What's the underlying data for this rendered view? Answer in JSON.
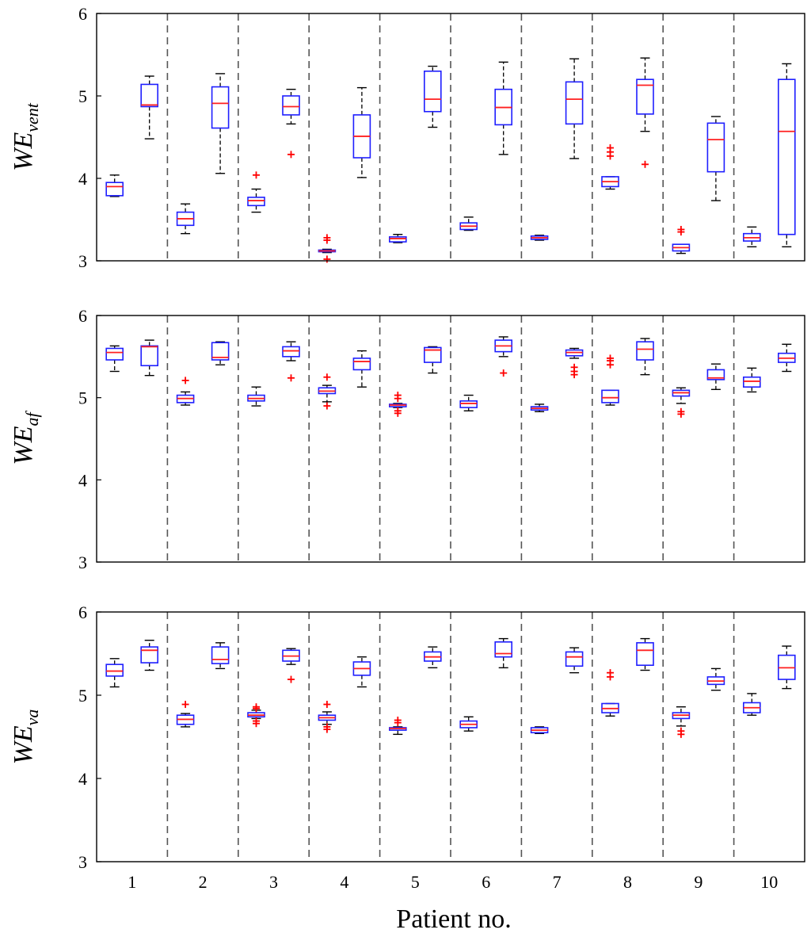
{
  "chart_data": {
    "type": "boxplot",
    "xlabel": "Patient no.",
    "categories": [
      "1",
      "2",
      "3",
      "4",
      "5",
      "6",
      "7",
      "8",
      "9",
      "10"
    ],
    "colors": {
      "box": "#1f1fff",
      "median": "#ff2020",
      "whisker": "#000000",
      "outlier": "#ff0000",
      "divider": "#555555"
    },
    "panels": [
      {
        "ylabel_main": "WE",
        "ylabel_sub": "vent",
        "ylim": [
          3,
          6
        ],
        "yticks": [
          "3",
          "4",
          "5",
          "6"
        ],
        "boxes": [
          [
            {
              "wlo": 3.78,
              "q1": 3.79,
              "med": 3.9,
              "q3": 3.95,
              "whi": 4.04,
              "out": []
            },
            {
              "wlo": 4.48,
              "q1": 4.87,
              "med": 4.89,
              "q3": 5.14,
              "whi": 5.24,
              "out": []
            }
          ],
          [
            {
              "wlo": 3.33,
              "q1": 3.43,
              "med": 3.51,
              "q3": 3.59,
              "whi": 3.69,
              "out": []
            },
            {
              "wlo": 4.06,
              "q1": 4.61,
              "med": 4.91,
              "q3": 5.11,
              "whi": 5.27,
              "out": []
            }
          ],
          [
            {
              "wlo": 3.59,
              "q1": 3.67,
              "med": 3.73,
              "q3": 3.77,
              "whi": 3.87,
              "out": [
                4.04
              ]
            },
            {
              "wlo": 4.66,
              "q1": 4.77,
              "med": 4.87,
              "q3": 5.0,
              "whi": 5.08,
              "out": [
                4.29
              ]
            }
          ],
          [
            {
              "wlo": 3.1,
              "q1": 3.11,
              "med": 3.12,
              "q3": 3.13,
              "whi": 3.14,
              "out": [
                3.02,
                3.25,
                3.28
              ]
            },
            {
              "wlo": 4.01,
              "q1": 4.25,
              "med": 4.51,
              "q3": 4.77,
              "whi": 5.1,
              "out": []
            }
          ],
          [
            {
              "wlo": 3.22,
              "q1": 3.23,
              "med": 3.27,
              "q3": 3.29,
              "whi": 3.32,
              "out": []
            },
            {
              "wlo": 4.62,
              "q1": 4.81,
              "med": 4.96,
              "q3": 5.3,
              "whi": 5.36,
              "out": []
            }
          ],
          [
            {
              "wlo": 3.37,
              "q1": 3.38,
              "med": 3.42,
              "q3": 3.46,
              "whi": 3.53,
              "out": []
            },
            {
              "wlo": 4.29,
              "q1": 4.65,
              "med": 4.86,
              "q3": 5.08,
              "whi": 5.41,
              "out": []
            }
          ],
          [
            {
              "wlo": 3.25,
              "q1": 3.26,
              "med": 3.28,
              "q3": 3.3,
              "whi": 3.31,
              "out": []
            },
            {
              "wlo": 4.24,
              "q1": 4.66,
              "med": 4.96,
              "q3": 5.17,
              "whi": 5.45,
              "out": []
            }
          ],
          [
            {
              "wlo": 3.87,
              "q1": 3.9,
              "med": 3.96,
              "q3": 4.02,
              "whi": 4.02,
              "out": [
                4.27,
                4.32,
                4.37
              ]
            },
            {
              "wlo": 4.57,
              "q1": 4.78,
              "med": 5.13,
              "q3": 5.2,
              "whi": 5.46,
              "out": [
                4.17
              ]
            }
          ],
          [
            {
              "wlo": 3.09,
              "q1": 3.12,
              "med": 3.16,
              "q3": 3.2,
              "whi": 3.2,
              "out": [
                3.35,
                3.38
              ]
            },
            {
              "wlo": 3.73,
              "q1": 4.08,
              "med": 4.47,
              "q3": 4.67,
              "whi": 4.75,
              "out": []
            }
          ],
          [
            {
              "wlo": 3.17,
              "q1": 3.24,
              "med": 3.28,
              "q3": 3.33,
              "whi": 3.41,
              "out": []
            },
            {
              "wlo": 3.17,
              "q1": 3.32,
              "med": 4.57,
              "q3": 5.2,
              "whi": 5.39,
              "out": []
            }
          ]
        ]
      },
      {
        "ylabel_main": "WE",
        "ylabel_sub": "af",
        "ylim": [
          3,
          6
        ],
        "yticks": [
          "3",
          "4",
          "5",
          "6"
        ],
        "boxes": [
          [
            {
              "wlo": 5.32,
              "q1": 5.46,
              "med": 5.55,
              "q3": 5.6,
              "whi": 5.63,
              "out": []
            },
            {
              "wlo": 5.27,
              "q1": 5.39,
              "med": 5.62,
              "q3": 5.63,
              "whi": 5.7,
              "out": []
            }
          ],
          [
            {
              "wlo": 4.91,
              "q1": 4.94,
              "med": 4.99,
              "q3": 5.03,
              "whi": 5.07,
              "out": [
                5.21
              ]
            },
            {
              "wlo": 5.4,
              "q1": 5.46,
              "med": 5.49,
              "q3": 5.67,
              "whi": 5.68,
              "out": []
            }
          ],
          [
            {
              "wlo": 4.9,
              "q1": 4.96,
              "med": 4.99,
              "q3": 5.03,
              "whi": 5.13,
              "out": []
            },
            {
              "wlo": 5.45,
              "q1": 5.5,
              "med": 5.57,
              "q3": 5.62,
              "whi": 5.68,
              "out": [
                5.24
              ]
            }
          ],
          [
            {
              "wlo": 4.95,
              "q1": 5.05,
              "med": 5.08,
              "q3": 5.12,
              "whi": 5.15,
              "out": [
                4.9,
                5.25
              ]
            },
            {
              "wlo": 5.13,
              "q1": 5.34,
              "med": 5.44,
              "q3": 5.48,
              "whi": 5.57,
              "out": []
            }
          ],
          [
            {
              "wlo": 4.88,
              "q1": 4.89,
              "med": 4.91,
              "q3": 4.92,
              "whi": 4.93,
              "out": [
                4.81,
                4.84,
                4.99,
                5.03
              ]
            },
            {
              "wlo": 5.3,
              "q1": 5.43,
              "med": 5.58,
              "q3": 5.61,
              "whi": 5.62,
              "out": []
            }
          ],
          [
            {
              "wlo": 4.84,
              "q1": 4.88,
              "med": 4.93,
              "q3": 4.96,
              "whi": 5.03,
              "out": []
            },
            {
              "wlo": 5.5,
              "q1": 5.56,
              "med": 5.63,
              "q3": 5.7,
              "whi": 5.74,
              "out": [
                5.3
              ]
            }
          ],
          [
            {
              "wlo": 4.83,
              "q1": 4.85,
              "med": 4.87,
              "q3": 4.89,
              "whi": 4.92,
              "out": []
            },
            {
              "wlo": 5.48,
              "q1": 5.51,
              "med": 5.55,
              "q3": 5.58,
              "whi": 5.6,
              "out": [
                5.28,
                5.32,
                5.37
              ]
            }
          ],
          [
            {
              "wlo": 4.91,
              "q1": 4.94,
              "med": 5.0,
              "q3": 5.09,
              "whi": 5.09,
              "out": [
                5.4,
                5.45,
                5.48
              ]
            },
            {
              "wlo": 5.28,
              "q1": 5.46,
              "med": 5.59,
              "q3": 5.68,
              "whi": 5.72,
              "out": []
            }
          ],
          [
            {
              "wlo": 4.93,
              "q1": 5.02,
              "med": 5.06,
              "q3": 5.09,
              "whi": 5.12,
              "out": [
                4.8,
                4.83
              ]
            },
            {
              "wlo": 5.1,
              "q1": 5.22,
              "med": 5.24,
              "q3": 5.34,
              "whi": 5.41,
              "out": []
            }
          ],
          [
            {
              "wlo": 5.07,
              "q1": 5.13,
              "med": 5.2,
              "q3": 5.25,
              "whi": 5.36,
              "out": []
            },
            {
              "wlo": 5.32,
              "q1": 5.43,
              "med": 5.48,
              "q3": 5.54,
              "whi": 5.65,
              "out": []
            }
          ]
        ]
      },
      {
        "ylabel_main": "WE",
        "ylabel_sub": "va",
        "ylim": [
          3,
          6
        ],
        "yticks": [
          "3",
          "4",
          "5",
          "6"
        ],
        "boxes": [
          [
            {
              "wlo": 5.1,
              "q1": 5.23,
              "med": 5.29,
              "q3": 5.37,
              "whi": 5.44,
              "out": []
            },
            {
              "wlo": 5.3,
              "q1": 5.39,
              "med": 5.54,
              "q3": 5.58,
              "whi": 5.66,
              "out": []
            }
          ],
          [
            {
              "wlo": 4.62,
              "q1": 4.65,
              "med": 4.71,
              "q3": 4.76,
              "whi": 4.78,
              "out": [
                4.89
              ]
            },
            {
              "wlo": 5.32,
              "q1": 5.38,
              "med": 5.43,
              "q3": 5.58,
              "whi": 5.63,
              "out": []
            }
          ],
          [
            {
              "wlo": 4.72,
              "q1": 4.74,
              "med": 4.76,
              "q3": 4.79,
              "whi": 4.82,
              "out": [
                4.66,
                4.69,
                4.84,
                4.86
              ]
            },
            {
              "wlo": 5.37,
              "q1": 5.41,
              "med": 5.47,
              "q3": 5.54,
              "whi": 5.56,
              "out": [
                5.19
              ]
            }
          ],
          [
            {
              "wlo": 4.65,
              "q1": 4.7,
              "med": 4.73,
              "q3": 4.76,
              "whi": 4.8,
              "out": [
                4.59,
                4.62,
                4.89
              ]
            },
            {
              "wlo": 5.1,
              "q1": 5.24,
              "med": 5.32,
              "q3": 5.4,
              "whi": 5.46,
              "out": []
            }
          ],
          [
            {
              "wlo": 4.53,
              "q1": 4.58,
              "med": 4.6,
              "q3": 4.61,
              "whi": 4.62,
              "out": [
                4.67,
                4.7
              ]
            },
            {
              "wlo": 5.33,
              "q1": 5.41,
              "med": 5.46,
              "q3": 5.52,
              "whi": 5.58,
              "out": []
            }
          ],
          [
            {
              "wlo": 4.57,
              "q1": 4.61,
              "med": 4.65,
              "q3": 4.69,
              "whi": 4.74,
              "out": []
            },
            {
              "wlo": 5.33,
              "q1": 5.46,
              "med": 5.5,
              "q3": 5.64,
              "whi": 5.68,
              "out": []
            }
          ],
          [
            {
              "wlo": 4.54,
              "q1": 4.55,
              "med": 4.58,
              "q3": 4.61,
              "whi": 4.62,
              "out": []
            },
            {
              "wlo": 5.27,
              "q1": 5.35,
              "med": 5.46,
              "q3": 5.52,
              "whi": 5.57,
              "out": []
            }
          ],
          [
            {
              "wlo": 4.75,
              "q1": 4.79,
              "med": 4.84,
              "q3": 4.9,
              "whi": 4.9,
              "out": [
                5.22,
                5.27
              ]
            },
            {
              "wlo": 5.3,
              "q1": 5.36,
              "med": 5.54,
              "q3": 5.63,
              "whi": 5.68,
              "out": []
            }
          ],
          [
            {
              "wlo": 4.63,
              "q1": 4.72,
              "med": 4.76,
              "q3": 4.79,
              "whi": 4.86,
              "out": [
                4.53,
                4.57
              ]
            },
            {
              "wlo": 5.06,
              "q1": 5.13,
              "med": 5.17,
              "q3": 5.22,
              "whi": 5.32,
              "out": []
            }
          ],
          [
            {
              "wlo": 4.76,
              "q1": 4.79,
              "med": 4.85,
              "q3": 4.91,
              "whi": 5.02,
              "out": []
            },
            {
              "wlo": 5.08,
              "q1": 5.19,
              "med": 5.33,
              "q3": 5.48,
              "whi": 5.59,
              "out": []
            }
          ]
        ]
      }
    ]
  }
}
